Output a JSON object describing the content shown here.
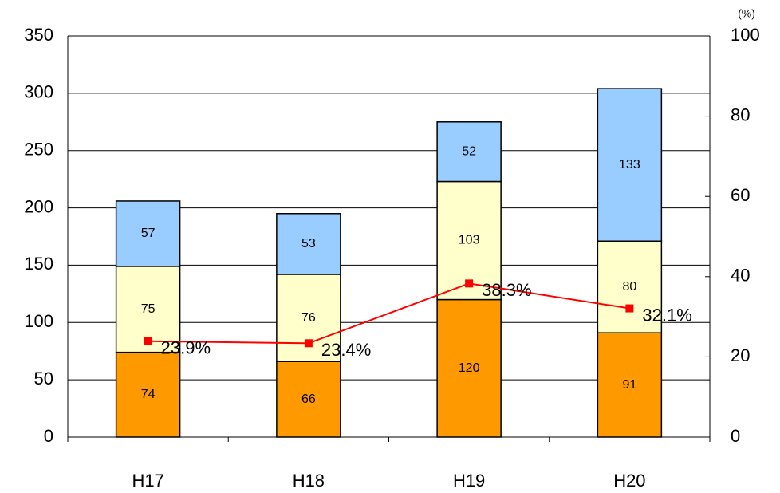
{
  "chart_data": {
    "type": "stacked_bar_line",
    "categories": [
      "H17",
      "H18",
      "H19",
      "H20"
    ],
    "series": [
      {
        "color": "#ff9900",
        "values": [
          74,
          66,
          120,
          91
        ]
      },
      {
        "color": "#ffffcc",
        "values": [
          75,
          76,
          103,
          80
        ]
      },
      {
        "color": "#99ccff",
        "values": [
          57,
          53,
          52,
          133
        ]
      },
      {
        "color": "#ff0000",
        "axis": "y2",
        "type": "line",
        "values": [
          23.9,
          23.4,
          38.3,
          32.1
        ],
        "value_labels": [
          "23.9%",
          "23.4%",
          "38.3%",
          "32.1%"
        ]
      }
    ],
    "ylim": [
      0,
      350
    ],
    "yticks": [
      0,
      50,
      100,
      150,
      200,
      250,
      300,
      350
    ],
    "y2lim": [
      0,
      100
    ],
    "y2ticks": [
      0,
      20,
      40,
      60,
      80,
      100
    ],
    "y2_axis_label": "(%)",
    "grid": true
  }
}
